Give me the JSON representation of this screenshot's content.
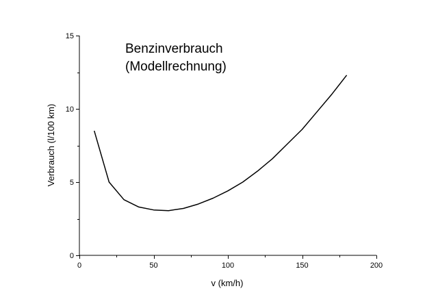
{
  "chart_data": {
    "type": "line",
    "title": "Benzinverbrauch",
    "subtitle": "(Modellrechnung)",
    "xlabel": "v (km/h)",
    "ylabel": "Verbrauch (l/100 km)",
    "xlim": [
      0,
      200
    ],
    "ylim": [
      0,
      15
    ],
    "x_ticks": [
      0,
      50,
      100,
      150,
      200
    ],
    "y_ticks": [
      0,
      5,
      10,
      15
    ],
    "grid": false,
    "legend": "none",
    "series": [
      {
        "x": [
          10,
          20,
          30,
          40,
          50,
          60,
          70,
          80,
          90,
          100,
          110,
          120,
          130,
          140,
          150,
          160,
          170,
          180
        ],
        "y": [
          8.5,
          5.0,
          3.8,
          3.3,
          3.1,
          3.05,
          3.2,
          3.5,
          3.9,
          4.4,
          5.0,
          5.75,
          6.6,
          7.6,
          8.6,
          9.8,
          11.0,
          12.3
        ]
      }
    ]
  }
}
